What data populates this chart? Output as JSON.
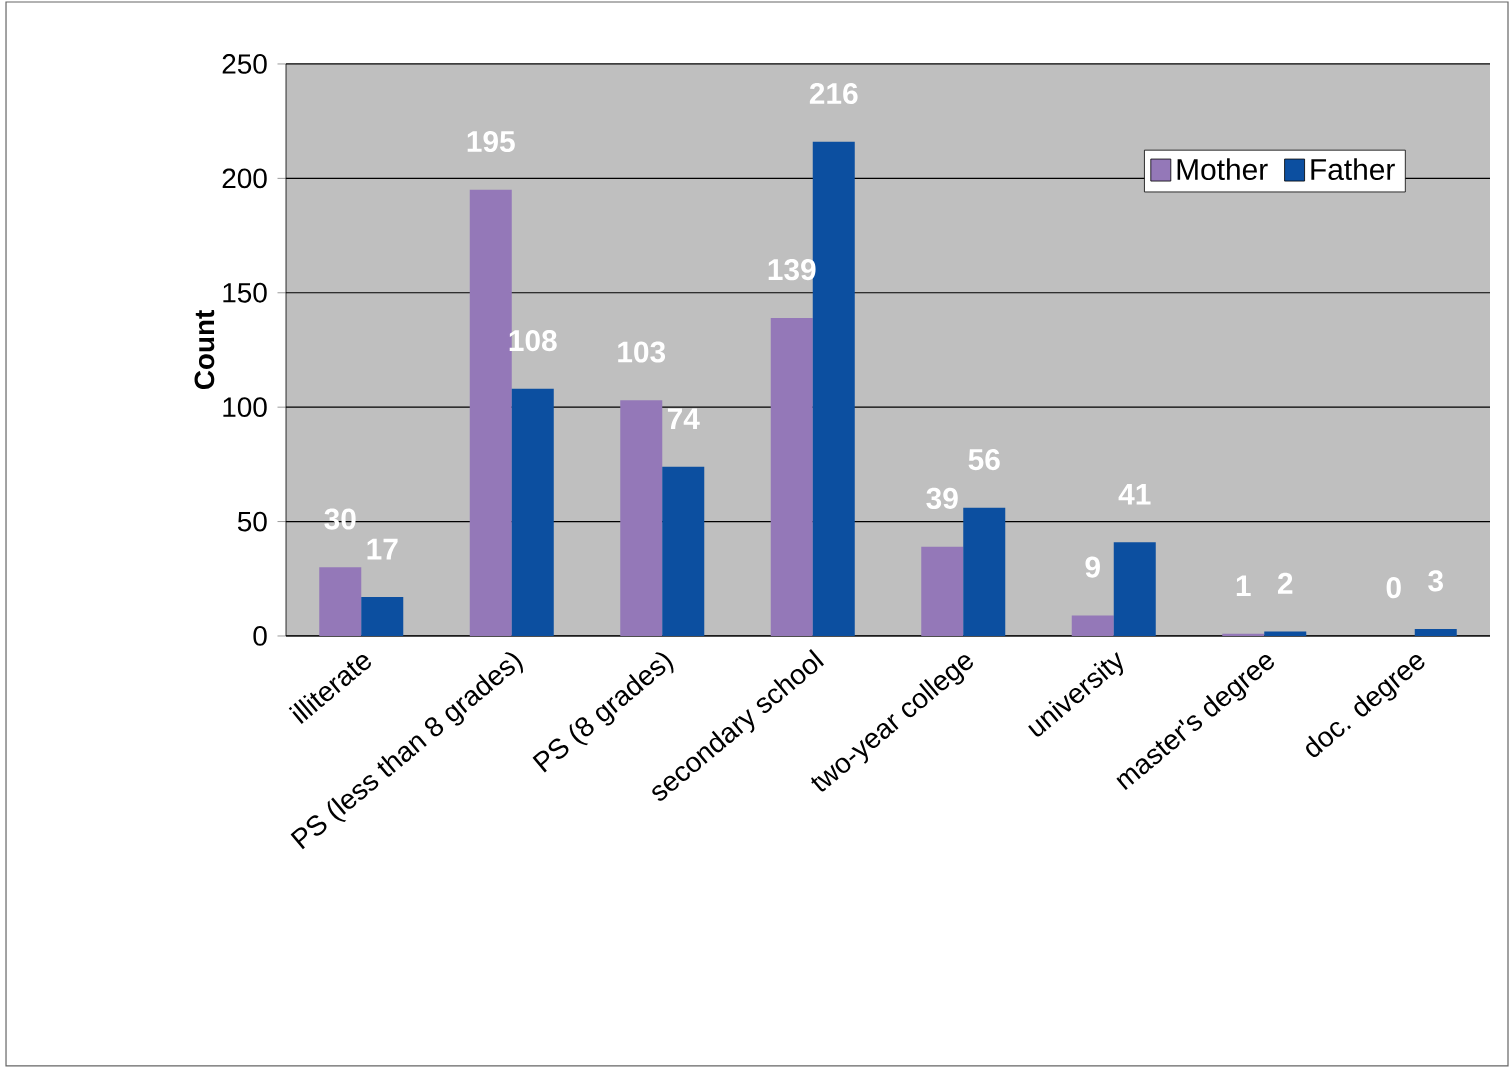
{
  "chart_data": {
    "type": "bar",
    "ylabel": "Count",
    "categories": [
      "illiterate",
      "PS (less than 8 grades)",
      "PS (8 grades)",
      "secondary school",
      "two-year college",
      "university",
      "master's degree",
      "doc. degree"
    ],
    "series": [
      {
        "name": "Mother",
        "color": "#9478b8",
        "values": [
          30,
          195,
          103,
          139,
          39,
          9,
          1,
          0
        ]
      },
      {
        "name": "Father",
        "color": "#0c4fa0",
        "values": [
          17,
          108,
          74,
          216,
          56,
          41,
          2,
          3
        ]
      }
    ],
    "ylim": [
      0,
      250
    ],
    "yticks": [
      0,
      50,
      100,
      150,
      200,
      250
    ],
    "grid": "y",
    "legend": "top right",
    "data_labels": true
  }
}
